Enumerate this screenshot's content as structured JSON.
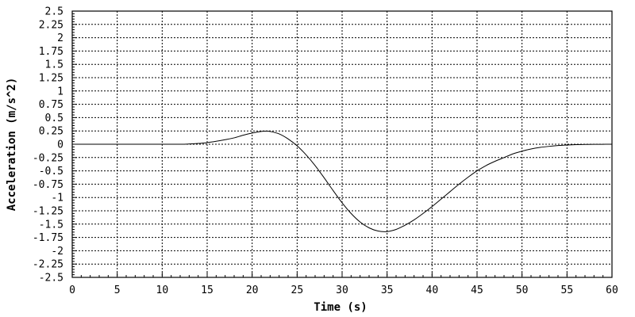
{
  "chart_data": {
    "type": "line",
    "title": "",
    "xlabel": "Time (s)",
    "ylabel": "Acceleration (m/s^2)",
    "xlim": [
      0,
      60
    ],
    "ylim": [
      -2.5,
      2.5
    ],
    "grid": true,
    "x_ticks": [
      "0",
      "5",
      "10",
      "15",
      "20",
      "25",
      "30",
      "35",
      "40",
      "45",
      "50",
      "55",
      "60"
    ],
    "y_ticks": [
      "2.5",
      "2.25",
      "2",
      "1.75",
      "1.5",
      "1.25",
      "1",
      "0.75",
      "0.5",
      "0.25",
      "0",
      "-0.25",
      "-0.5",
      "-0.75",
      "-1",
      "-1.25",
      "-1.5",
      "-1.75",
      "-2",
      "-2.25",
      "-2.5"
    ],
    "series": [
      {
        "color": "#000000",
        "x": [
          0,
          2,
          4,
          6,
          8,
          10,
          12,
          13,
          14,
          15,
          16,
          17,
          18,
          19,
          20,
          21,
          21.5,
          22,
          23,
          24,
          25,
          26,
          27,
          28,
          29,
          30,
          31,
          32,
          33,
          34,
          35,
          36,
          37,
          38,
          39,
          40,
          41,
          42,
          43,
          44,
          45,
          46,
          47,
          48,
          49,
          50,
          51,
          52,
          53,
          54,
          55,
          56,
          57,
          58,
          60
        ],
        "y": [
          0,
          0,
          0,
          0,
          0,
          0,
          0,
          0.005,
          0.015,
          0.03,
          0.055,
          0.085,
          0.12,
          0.17,
          0.21,
          0.24,
          0.245,
          0.24,
          0.195,
          0.1,
          -0.03,
          -0.2,
          -0.4,
          -0.63,
          -0.87,
          -1.1,
          -1.3,
          -1.46,
          -1.57,
          -1.63,
          -1.64,
          -1.6,
          -1.52,
          -1.42,
          -1.3,
          -1.17,
          -1.03,
          -0.89,
          -0.75,
          -0.62,
          -0.5,
          -0.4,
          -0.32,
          -0.25,
          -0.18,
          -0.13,
          -0.09,
          -0.06,
          -0.04,
          -0.025,
          -0.015,
          -0.008,
          -0.004,
          -0.002,
          0
        ]
      }
    ]
  }
}
